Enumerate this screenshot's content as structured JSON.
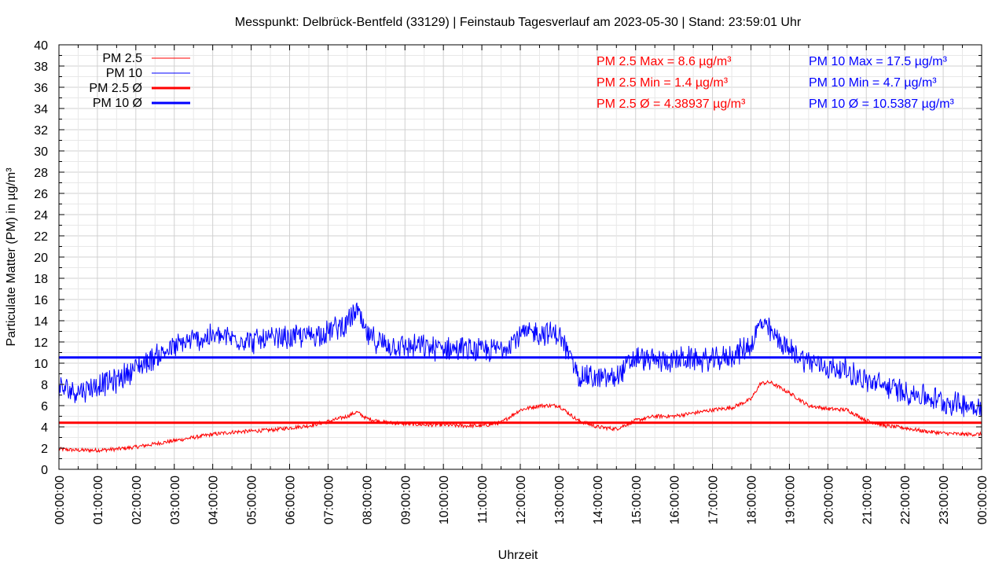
{
  "chart_data": {
    "type": "line",
    "title": "Messpunkt: Delbrück-Bentfeld (33129) | Feinstaub Tagesverlauf am 2023-05-30 | Stand: 23:59:01 Uhr",
    "xlabel": "Uhrzeit",
    "ylabel": "Particulate Matter (PM) in µg/m³",
    "ylim": [
      0,
      40
    ],
    "xlim": [
      "00:00:00",
      "24:00:00"
    ],
    "grid": true,
    "legend_position": "top-left",
    "x_ticks": [
      "00:00:00",
      "01:00:00",
      "02:00:00",
      "03:00:00",
      "04:00:00",
      "05:00:00",
      "06:00:00",
      "07:00:00",
      "08:00:00",
      "09:00:00",
      "10:00:00",
      "11:00:00",
      "12:00:00",
      "13:00:00",
      "14:00:00",
      "15:00:00",
      "16:00:00",
      "17:00:00",
      "18:00:00",
      "19:00:00",
      "20:00:00",
      "21:00:00",
      "22:00:00",
      "23:00:00",
      "00:00:00"
    ],
    "y_ticks": [
      "0",
      "2",
      "4",
      "6",
      "8",
      "10",
      "12",
      "14",
      "16",
      "18",
      "20",
      "22",
      "24",
      "26",
      "28",
      "30",
      "32",
      "34",
      "36",
      "38",
      "40"
    ],
    "x_hours": [
      0,
      0.5,
      1,
      1.5,
      2,
      2.5,
      3,
      3.5,
      4,
      4.5,
      5,
      5.5,
      6,
      6.5,
      7,
      7.5,
      7.75,
      8,
      8.5,
      9,
      9.5,
      10,
      10.5,
      11,
      11.5,
      12,
      12.5,
      13,
      13.5,
      14,
      14.5,
      15,
      15.5,
      16,
      16.5,
      17,
      17.5,
      18,
      18.25,
      18.5,
      19,
      19.5,
      20,
      20.5,
      21,
      21.5,
      22,
      22.5,
      23,
      23.5,
      24
    ],
    "series": [
      {
        "name": "PM 2.5",
        "color": "#ff0000",
        "values": [
          1.9,
          1.8,
          1.8,
          1.9,
          2.1,
          2.4,
          2.7,
          3.0,
          3.3,
          3.5,
          3.6,
          3.7,
          3.9,
          4.1,
          4.5,
          5.0,
          5.4,
          4.8,
          4.4,
          4.3,
          4.2,
          4.2,
          4.1,
          4.1,
          4.4,
          5.6,
          6.0,
          6.0,
          4.6,
          4.0,
          3.8,
          4.6,
          5.0,
          5.0,
          5.3,
          5.6,
          5.8,
          6.6,
          8.1,
          8.2,
          7.2,
          6.0,
          5.7,
          5.6,
          4.6,
          4.1,
          3.9,
          3.6,
          3.4,
          3.3,
          3.3
        ]
      },
      {
        "name": "PM 10",
        "color": "#0000ff",
        "values": [
          7.6,
          7.4,
          7.9,
          8.4,
          9.6,
          10.6,
          11.5,
          12.2,
          12.5,
          12.4,
          12.1,
          12.2,
          12.4,
          12.6,
          13.0,
          13.8,
          15.0,
          12.6,
          11.7,
          11.6,
          11.5,
          11.4,
          11.3,
          11.1,
          11.4,
          12.7,
          12.9,
          12.7,
          9.0,
          8.5,
          8.7,
          10.5,
          10.2,
          10.3,
          10.4,
          10.2,
          10.7,
          11.7,
          13.8,
          13.0,
          11.2,
          10.2,
          9.6,
          9.3,
          8.3,
          7.8,
          7.3,
          6.9,
          6.4,
          6.1,
          5.9
        ]
      }
    ],
    "averages": [
      {
        "name": "PM 2.5 Ø",
        "color": "#ff0000",
        "value": 4.38937
      },
      {
        "name": "PM 10 Ø",
        "color": "#0000ff",
        "value": 10.5387
      }
    ],
    "stats": {
      "pm25": [
        "PM 2.5 Max = 8.6 µg/m³",
        "PM 2.5 Min = 1.4 µg/m³",
        "PM 2.5 Ø = 4.38937 µg/m³"
      ],
      "pm10": [
        "PM 10 Max = 17.5 µg/m³",
        "PM 10 Min = 4.7 µg/m³",
        "PM 10 Ø = 10.5387 µg/m³"
      ]
    }
  }
}
